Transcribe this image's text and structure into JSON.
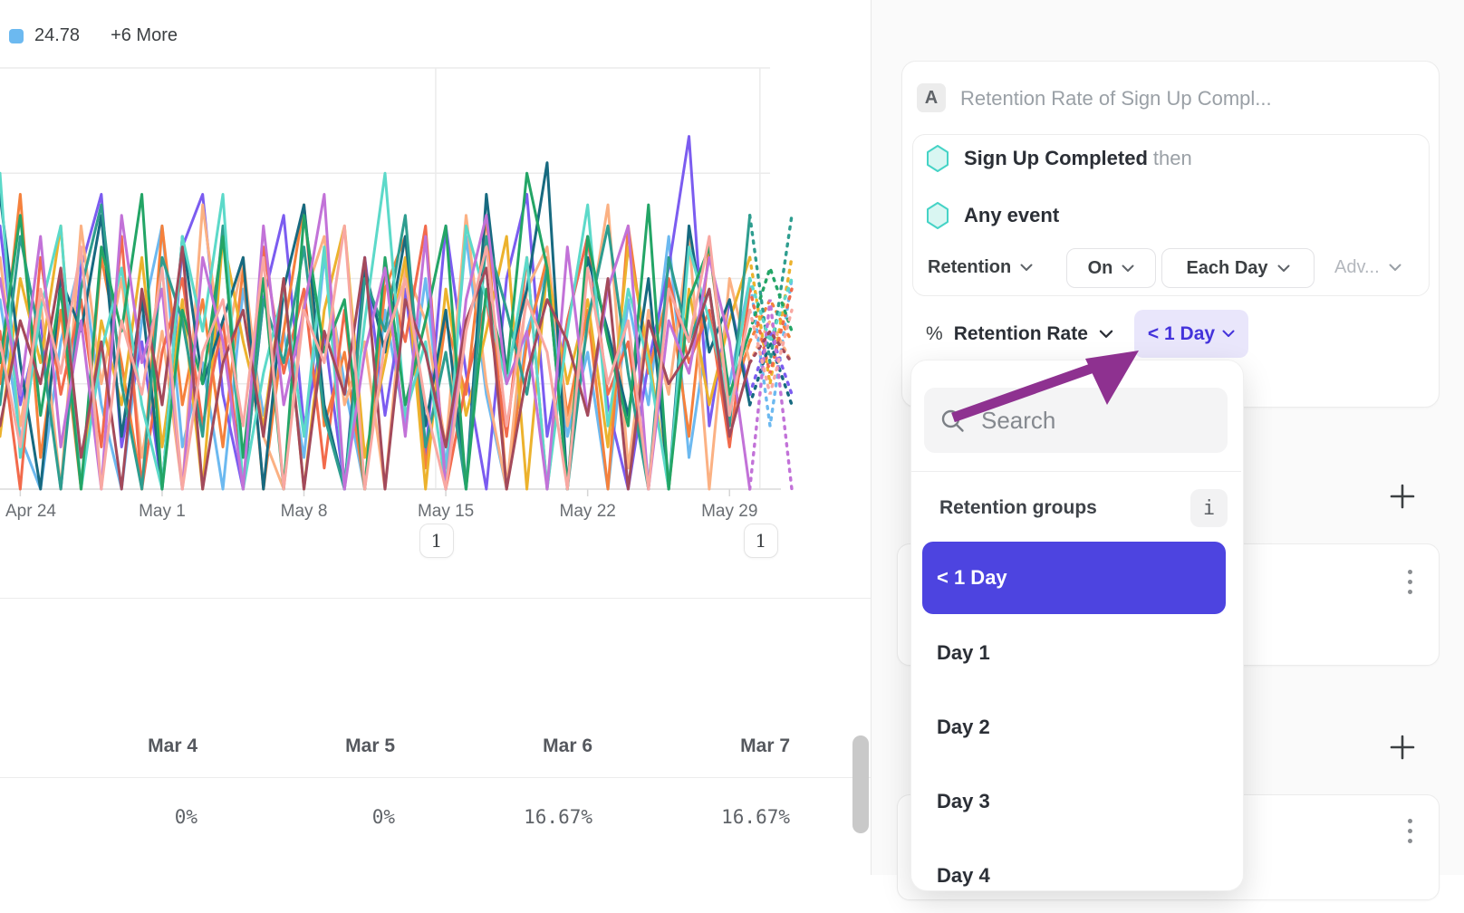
{
  "colors": {
    "accent_purple": "#4D44E0",
    "pill_bg": "#E9E6FB",
    "pill_text": "#4433DB",
    "arrow": "#8E3190",
    "hexagon_stroke": "#45D3C6",
    "hexagon_fill": "#D9F6F2",
    "legend_swatch": "#6CB9F0",
    "grid": "#ebebeb",
    "axis": "#e3e3e3"
  },
  "legend": {
    "value": "24.78",
    "more_label": "+6 More"
  },
  "chart_data": {
    "type": "line",
    "title": "",
    "xlabel": "",
    "ylabel": "",
    "x_unit": "day",
    "ylim": [
      0,
      40
    ],
    "grid_step": 10,
    "grid": true,
    "x_ticks": [
      {
        "label": "Apr 24",
        "day": 1
      },
      {
        "label": "May 1",
        "day": 8
      },
      {
        "label": "May 8",
        "day": 15
      },
      {
        "label": "May 15",
        "day": 22
      },
      {
        "label": "May 22",
        "day": 29
      },
      {
        "label": "May 29",
        "day": 36
      }
    ],
    "annotations": [
      {
        "label": "1",
        "day": 21.5
      },
      {
        "label": "1",
        "day": 37.5
      }
    ],
    "series": [
      {
        "name": "24.78",
        "color": "#6CB9F0",
        "values": [
          18,
          5,
          0,
          14,
          22,
          8,
          0,
          16,
          25,
          4,
          12,
          0,
          19,
          7,
          15,
          3,
          22,
          10,
          0,
          17,
          6,
          20,
          2,
          24,
          9,
          0,
          15,
          21,
          5,
          13,
          0,
          18,
          8,
          24,
          3,
          16,
          10,
          20,
          6
        ]
      },
      {
        "name": "line-violet",
        "color": "#7B5CF0",
        "values": [
          25,
          8,
          16,
          0,
          21,
          28,
          4,
          14,
          0,
          23,
          28,
          9,
          0,
          18,
          26,
          6,
          15,
          0,
          22,
          7,
          19,
          3,
          25,
          11,
          0,
          20,
          28,
          5,
          16,
          24,
          8,
          0,
          12,
          21,
          33.5,
          6,
          18,
          9,
          15
        ]
      },
      {
        "name": "line-orange",
        "color": "#F5813C",
        "values": [
          10,
          28,
          3,
          17,
          0,
          22,
          12,
          0,
          25,
          8,
          18,
          4,
          21,
          0,
          15,
          27,
          6,
          13,
          0,
          19,
          24,
          2,
          16,
          9,
          26,
          0,
          14,
          22,
          7,
          17,
          0,
          25,
          11,
          19,
          5,
          23,
          8,
          14,
          18
        ]
      },
      {
        "name": "line-peach",
        "color": "#FBB183",
        "values": [
          22,
          6,
          18,
          0,
          25,
          10,
          20,
          3,
          15,
          0,
          27,
          12,
          22,
          5,
          0,
          18,
          24,
          8,
          14,
          0,
          21,
          16,
          4,
          26,
          10,
          0,
          19,
          23,
          6,
          15,
          27,
          2,
          17,
          9,
          24,
          0,
          20,
          12,
          16
        ]
      },
      {
        "name": "line-gold",
        "color": "#ECB22D",
        "values": [
          5,
          20,
          12,
          25,
          0,
          16,
          8,
          22,
          4,
          18,
          0,
          24,
          14,
          6,
          20,
          0,
          17,
          25,
          3,
          12,
          22,
          0,
          19,
          7,
          15,
          24,
          0,
          21,
          10,
          18,
          4,
          23,
          13,
          0,
          19,
          8,
          16,
          22,
          10
        ]
      },
      {
        "name": "line-salmon",
        "color": "#F26A4B",
        "values": [
          15,
          0,
          22,
          9,
          18,
          4,
          24,
          0,
          13,
          20,
          6,
          16,
          0,
          23,
          11,
          19,
          2,
          17,
          0,
          21,
          14,
          25,
          0,
          10,
          18,
          5,
          22,
          0,
          16,
          24,
          9,
          14,
          0,
          20,
          12,
          17,
          4,
          19,
          11
        ]
      },
      {
        "name": "line-darkteal",
        "color": "#176A80",
        "values": [
          28,
          12,
          0,
          20,
          15,
          26,
          5,
          18,
          0,
          24,
          10,
          16,
          22,
          0,
          19,
          27,
          8,
          0,
          21,
          13,
          24,
          6,
          17,
          0,
          28,
          11,
          19,
          31,
          0,
          22,
          15,
          7,
          20,
          0,
          25,
          13,
          18,
          8,
          14
        ]
      },
      {
        "name": "line-teal",
        "color": "#2E9D8F",
        "values": [
          8,
          24,
          14,
          0,
          19,
          27,
          10,
          0,
          22,
          16,
          5,
          25,
          0,
          18,
          12,
          23,
          7,
          0,
          20,
          15,
          26,
          4,
          13,
          0,
          24,
          17,
          9,
          21,
          0,
          16,
          25,
          11,
          0,
          22,
          14,
          19,
          6,
          26,
          12
        ]
      },
      {
        "name": "line-turquoise",
        "color": "#5CD9C9",
        "values": [
          30,
          3,
          17,
          25,
          0,
          13,
          21,
          8,
          0,
          24,
          15,
          28,
          0,
          11,
          19,
          5,
          23,
          0,
          16,
          30,
          7,
          14,
          0,
          25,
          18,
          10,
          22,
          0,
          15,
          27,
          6,
          19,
          12,
          0,
          23,
          16,
          8,
          20,
          14
        ]
      },
      {
        "name": "line-green",
        "color": "#23A566",
        "values": [
          12,
          26,
          7,
          19,
          0,
          23,
          15,
          28,
          0,
          17,
          10,
          24,
          3,
          20,
          0,
          26,
          13,
          18,
          0,
          22,
          8,
          16,
          25,
          0,
          19,
          11,
          30,
          21,
          0,
          24,
          14,
          6,
          27,
          0,
          18,
          23,
          9,
          15,
          21
        ]
      },
      {
        "name": "line-orchid",
        "color": "#C272D8",
        "values": [
          20,
          9,
          24,
          4,
          16,
          0,
          26,
          12,
          19,
          0,
          22,
          14,
          0,
          25,
          8,
          17,
          28,
          0,
          13,
          21,
          5,
          24,
          0,
          18,
          26,
          10,
          15,
          0,
          23,
          7,
          19,
          25,
          0,
          16,
          11,
          22,
          14,
          0,
          18
        ]
      },
      {
        "name": "line-maroon",
        "color": "#A34A5B",
        "values": [
          6,
          16,
          10,
          21,
          3,
          14,
          0,
          19,
          8,
          23,
          0,
          12,
          17,
          5,
          20,
          0,
          15,
          9,
          22,
          0,
          18,
          13,
          4,
          16,
          21,
          0,
          11,
          18,
          14,
          7,
          20,
          0,
          16,
          10,
          13,
          19,
          5,
          12,
          15
        ]
      },
      {
        "name": "line-pink",
        "color": "#F8A8A2",
        "values": [
          14,
          4,
          19,
          11,
          23,
          0,
          16,
          9,
          21,
          0,
          13,
          18,
          6,
          22,
          0,
          17,
          12,
          25,
          0,
          14,
          20,
          8,
          0,
          15,
          23,
          6,
          18,
          13,
          0,
          21,
          10,
          16,
          0,
          19,
          14,
          24,
          7,
          17,
          9
        ]
      }
    ]
  },
  "summary_table": {
    "columns": [
      {
        "header": "Mar 4",
        "value": "0%"
      },
      {
        "header": "Mar 5",
        "value": "0%"
      },
      {
        "header": "Mar 6",
        "value": "16.67%"
      },
      {
        "header": "Mar 7",
        "value": "16.67%"
      }
    ]
  },
  "config_card": {
    "badge": "A",
    "title": "Retention Rate of Sign Up Compl...",
    "events": [
      {
        "name": "Sign Up Completed",
        "suffix": "then"
      },
      {
        "name": "Any event",
        "suffix": ""
      }
    ],
    "controls": {
      "retention": "Retention",
      "on": "On",
      "each_day": "Each Day",
      "advanced": "Adv..."
    },
    "measure": {
      "symbol": "%",
      "label": "Retention Rate",
      "selected": "< 1 Day"
    }
  },
  "dropdown_menu": {
    "search_placeholder": "Search",
    "group_label": "Retention groups",
    "info_glyph": "i",
    "items": [
      {
        "label": "< 1 Day",
        "selected": true
      },
      {
        "label": "Day 1",
        "selected": false
      },
      {
        "label": "Day 2",
        "selected": false
      },
      {
        "label": "Day 3",
        "selected": false
      },
      {
        "label": "Day 4",
        "selected": false
      }
    ]
  }
}
